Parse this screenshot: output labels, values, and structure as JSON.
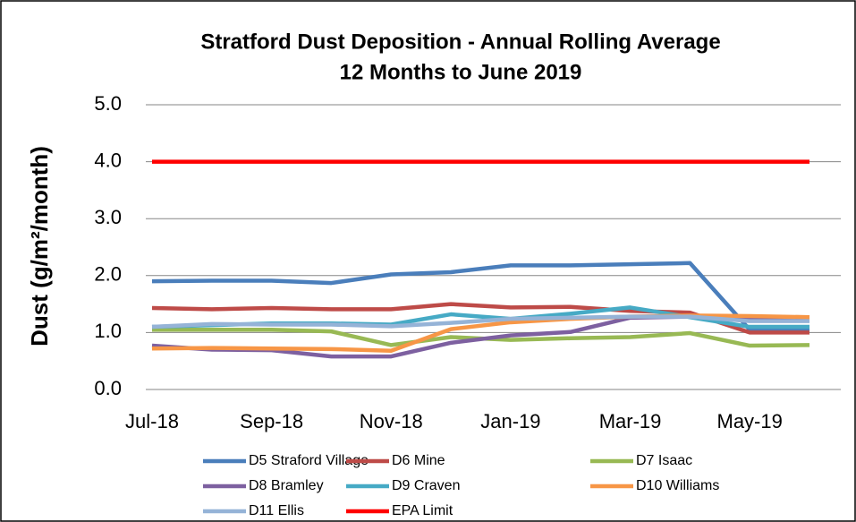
{
  "chart_data": {
    "type": "line",
    "title": "Stratford Dust Deposition - Annual Rolling Average",
    "subtitle": "12 Months to June 2019",
    "y_label": "Dust (g/m²/month)",
    "categories": [
      "Jul-18",
      null,
      "Sep-18",
      null,
      "Nov-18",
      null,
      "Jan-19",
      null,
      "Mar-19",
      null,
      "May-19",
      null
    ],
    "ylim": [
      0,
      5
    ],
    "yticks": [
      {
        "value": 0,
        "label": "0.0"
      },
      {
        "value": 1,
        "label": "1.0"
      },
      {
        "value": 2,
        "label": "2.0"
      },
      {
        "value": 3,
        "label": "3.0"
      },
      {
        "value": 4,
        "label": "4.0"
      },
      {
        "value": 5,
        "label": "5.0"
      }
    ],
    "grid": true,
    "legend": "bottom",
    "series": [
      {
        "name": "D5 Straford Village",
        "color": "#4a7ebb",
        "values": [
          1.9,
          1.91,
          1.91,
          1.87,
          2.02,
          2.06,
          2.18,
          2.18,
          2.2,
          2.22,
          1.05,
          1.05
        ]
      },
      {
        "name": "D6 Mine",
        "color": "#be4b48",
        "values": [
          1.43,
          1.41,
          1.43,
          1.41,
          1.41,
          1.5,
          1.44,
          1.45,
          1.38,
          1.35,
          1.0,
          1.0
        ]
      },
      {
        "name": "D7 Isaac",
        "color": "#98b954",
        "values": [
          1.05,
          1.05,
          1.05,
          1.02,
          0.78,
          0.92,
          0.87,
          0.9,
          0.92,
          0.99,
          0.77,
          0.78
        ]
      },
      {
        "name": "D8 Bramley",
        "color": "#7d60a0",
        "values": [
          0.77,
          0.7,
          0.69,
          0.58,
          0.58,
          0.82,
          0.95,
          1.01,
          1.26,
          1.28,
          1.25,
          1.25
        ]
      },
      {
        "name": "D9 Craven",
        "color": "#46aac5",
        "values": [
          1.1,
          1.13,
          1.16,
          1.16,
          1.14,
          1.32,
          1.24,
          1.33,
          1.44,
          1.27,
          1.1,
          1.1
        ]
      },
      {
        "name": "D10 Williams",
        "color": "#f79646",
        "values": [
          0.72,
          0.73,
          0.72,
          0.71,
          0.68,
          1.06,
          1.18,
          1.24,
          1.28,
          1.3,
          1.29,
          1.27
        ]
      },
      {
        "name": "D11 Ellis",
        "color": "#95b3d7",
        "values": [
          1.1,
          1.15,
          1.14,
          1.14,
          1.11,
          1.17,
          1.24,
          1.26,
          1.28,
          1.28,
          1.2,
          1.2
        ]
      },
      {
        "name": "EPA Limit",
        "color": "#ff0000",
        "values": [
          4,
          4,
          4,
          4,
          4,
          4,
          4,
          4,
          4,
          4,
          4,
          4
        ]
      }
    ]
  }
}
